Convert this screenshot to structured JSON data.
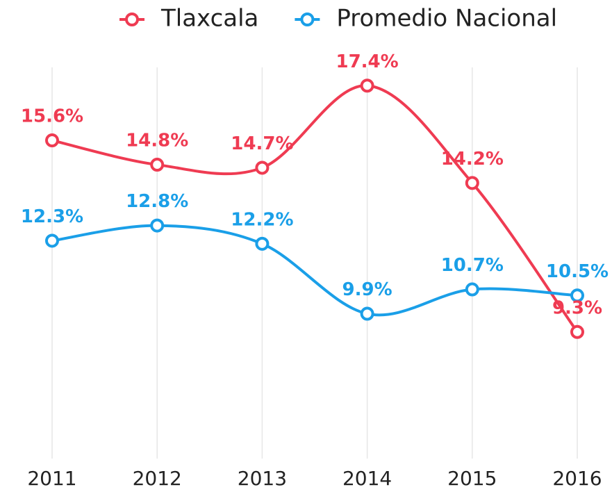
{
  "chart_data": {
    "type": "line",
    "categories": [
      "2011",
      "2012",
      "2013",
      "2014",
      "2015",
      "2016"
    ],
    "series": [
      {
        "name": "Tlaxcala",
        "color": "#ef3b52",
        "values": [
          15.6,
          14.8,
          14.7,
          17.4,
          14.2,
          9.3
        ],
        "value_labels": [
          "15.6%",
          "14.8%",
          "14.7%",
          "17.4%",
          "14.2%",
          "9.3%"
        ]
      },
      {
        "name": "Promedio Nacional",
        "color": "#1a9fe8",
        "values": [
          12.3,
          12.8,
          12.2,
          9.9,
          10.7,
          10.5
        ],
        "value_labels": [
          "12.3%",
          "12.8%",
          "12.2%",
          "9.9%",
          "10.7%",
          "10.5%"
        ]
      }
    ],
    "ylim": [
      5,
      18
    ],
    "grid": true,
    "legend": "top"
  }
}
